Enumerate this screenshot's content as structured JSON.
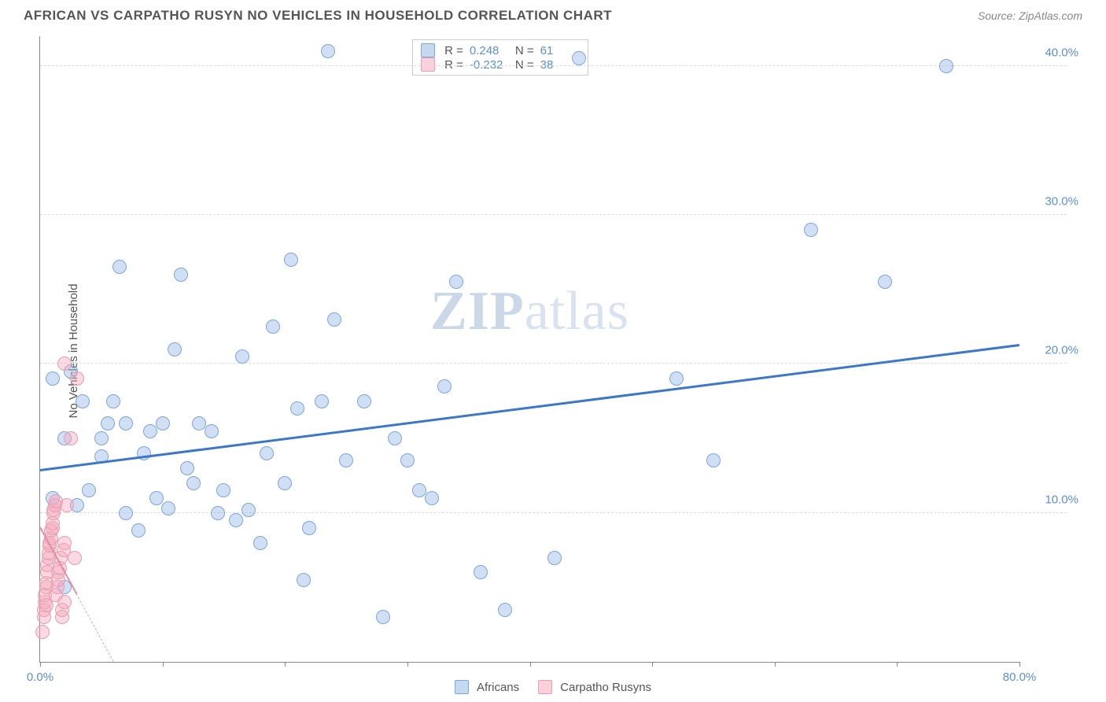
{
  "title": "AFRICAN VS CARPATHO RUSYN NO VEHICLES IN HOUSEHOLD CORRELATION CHART",
  "source": "Source: ZipAtlas.com",
  "ylabel": "No Vehicles in Household",
  "watermark_a": "ZIP",
  "watermark_b": "atlas",
  "xlim": [
    0,
    80
  ],
  "ylim": [
    0,
    42
  ],
  "yticks": [
    {
      "v": 10,
      "label": "10.0%"
    },
    {
      "v": 20,
      "label": "20.0%"
    },
    {
      "v": 30,
      "label": "30.0%"
    },
    {
      "v": 40,
      "label": "40.0%"
    }
  ],
  "xticks": [
    {
      "v": 0,
      "label": "0.0%"
    },
    {
      "v": 10
    },
    {
      "v": 20
    },
    {
      "v": 30
    },
    {
      "v": 40
    },
    {
      "v": 50
    },
    {
      "v": 60
    },
    {
      "v": 70
    },
    {
      "v": 80,
      "label": "80.0%"
    }
  ],
  "series": [
    {
      "name": "Africans",
      "color_class": "blue",
      "marker_fill": "rgba(150,185,230,0.45)",
      "marker_stroke": "#7ba7db",
      "line_color": "#3b78c9",
      "r": 0.248,
      "n": 61,
      "regression": {
        "x1": 0,
        "y1": 12.8,
        "x2": 80,
        "y2": 21.2,
        "dashed": false
      },
      "points": [
        [
          1,
          11
        ],
        [
          1,
          19
        ],
        [
          2.5,
          19.5
        ],
        [
          2,
          15
        ],
        [
          2,
          5
        ],
        [
          3,
          10.5
        ],
        [
          3.5,
          17.5
        ],
        [
          4,
          11.5
        ],
        [
          5,
          15
        ],
        [
          5,
          13.8
        ],
        [
          5.5,
          16
        ],
        [
          6,
          17.5
        ],
        [
          6.5,
          26.5
        ],
        [
          7,
          10
        ],
        [
          7,
          16
        ],
        [
          8,
          8.8
        ],
        [
          8.5,
          14
        ],
        [
          9,
          15.5
        ],
        [
          9.5,
          11
        ],
        [
          10,
          16
        ],
        [
          10.5,
          10.3
        ],
        [
          11,
          21
        ],
        [
          11.5,
          26
        ],
        [
          12,
          13
        ],
        [
          12.5,
          12
        ],
        [
          13,
          16
        ],
        [
          14,
          15.5
        ],
        [
          14.5,
          10
        ],
        [
          15,
          11.5
        ],
        [
          16,
          9.5
        ],
        [
          16.5,
          20.5
        ],
        [
          17,
          10.2
        ],
        [
          18,
          8
        ],
        [
          18.5,
          14
        ],
        [
          19,
          22.5
        ],
        [
          20,
          12
        ],
        [
          20.5,
          27
        ],
        [
          21,
          17
        ],
        [
          21.5,
          5.5
        ],
        [
          22,
          9
        ],
        [
          23,
          17.5
        ],
        [
          23.5,
          41
        ],
        [
          24,
          23
        ],
        [
          25,
          13.5
        ],
        [
          26.5,
          17.5
        ],
        [
          28,
          3
        ],
        [
          29,
          15
        ],
        [
          30,
          13.5
        ],
        [
          31,
          11.5
        ],
        [
          32,
          11
        ],
        [
          33,
          18.5
        ],
        [
          34,
          25.5
        ],
        [
          36,
          6
        ],
        [
          38,
          3.5
        ],
        [
          42,
          7
        ],
        [
          44,
          40.5
        ],
        [
          52,
          19
        ],
        [
          55,
          13.5
        ],
        [
          63,
          29
        ],
        [
          69,
          25.5
        ],
        [
          74,
          40
        ]
      ]
    },
    {
      "name": "Carpatho Rusyns",
      "color_class": "pink",
      "marker_fill": "rgba(245,170,190,0.45)",
      "marker_stroke": "#e89db2",
      "line_color": "#e57f9a",
      "r": -0.232,
      "n": 38,
      "regression": {
        "x1": 0,
        "y1": 9.0,
        "x2": 6,
        "y2": 0,
        "dashed": true,
        "extend_to": 0
      },
      "solid_segment": {
        "x1": 0,
        "y1": 9.0,
        "x2": 3,
        "y2": 4.5
      },
      "points": [
        [
          0.2,
          2
        ],
        [
          0.3,
          3
        ],
        [
          0.3,
          3.5
        ],
        [
          0.4,
          4
        ],
        [
          0.4,
          4.5
        ],
        [
          0.5,
          5
        ],
        [
          0.5,
          5.3
        ],
        [
          0.5,
          3.8
        ],
        [
          0.6,
          6
        ],
        [
          0.6,
          6.5
        ],
        [
          0.7,
          7
        ],
        [
          0.7,
          7.3
        ],
        [
          0.8,
          7.8
        ],
        [
          0.8,
          8
        ],
        [
          0.9,
          8.3
        ],
        [
          0.9,
          8.8
        ],
        [
          1,
          9
        ],
        [
          1,
          9.3
        ],
        [
          1.1,
          10
        ],
        [
          1.1,
          10.2
        ],
        [
          1.2,
          10.5
        ],
        [
          1.3,
          10.8
        ],
        [
          1.3,
          4.5
        ],
        [
          1.4,
          5
        ],
        [
          1.5,
          5.5
        ],
        [
          1.5,
          6
        ],
        [
          1.6,
          6.3
        ],
        [
          1.7,
          7
        ],
        [
          1.8,
          3
        ],
        [
          1.8,
          3.5
        ],
        [
          1.9,
          7.5
        ],
        [
          2,
          4
        ],
        [
          2,
          8
        ],
        [
          2,
          20
        ],
        [
          2.2,
          10.5
        ],
        [
          2.5,
          15
        ],
        [
          2.8,
          7
        ],
        [
          3,
          19
        ]
      ]
    }
  ],
  "stats_legend": [
    {
      "swatch": "blue",
      "r_label": "R =",
      "r_val": " 0.248",
      "n_label": "N =",
      "n_val": "61"
    },
    {
      "swatch": "pink",
      "r_label": "R =",
      "r_val": "-0.232",
      "n_label": "N =",
      "n_val": "38"
    }
  ],
  "bottom_legend": [
    {
      "swatch": "blue",
      "label": "Africans"
    },
    {
      "swatch": "pink",
      "label": "Carpatho Rusyns"
    }
  ]
}
